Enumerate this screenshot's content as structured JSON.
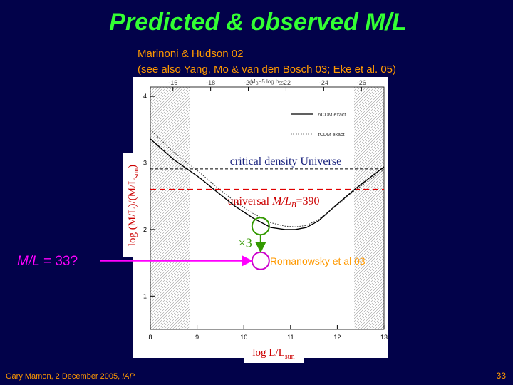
{
  "title": "Predicted & observed M/L",
  "citation": "Marinoni & Hudson 02",
  "citation_note": "(see also Yang, Mo & van den Bosch 03; Eke et al. 05)",
  "footer": {
    "author": "Gary Mamon, 2 December 2005, ",
    "venue": "IAP",
    "page": "33"
  },
  "chart_data": {
    "type": "line",
    "xlabel": {
      "main": "log L/L",
      "sub": "sun"
    },
    "ylabel": {
      "main": "log (M/L)/(M/L",
      "sub": "sun",
      "end": ")"
    },
    "x2label": {
      "main": "M",
      "sub": "B",
      "rest": "−5 log h",
      "sub2": "55"
    },
    "xlim": [
      8,
      13
    ],
    "xticks": [
      8,
      9,
      10,
      11,
      12,
      13
    ],
    "ylim": [
      0.5,
      4.14
    ],
    "yticks": [
      1,
      2,
      3,
      4
    ],
    "x2lim": [
      -14.8,
      -27.2
    ],
    "x2ticks": [
      -16,
      -18,
      -20,
      -22,
      -24,
      -26
    ],
    "series": [
      {
        "name": "ΛCDM exact",
        "color": "#000000",
        "style": "solid",
        "x": [
          8,
          8.5,
          9.05,
          9.4,
          9.81,
          10.2,
          10.58,
          10.88,
          11.1,
          11.34,
          11.6,
          11.95,
          12.4,
          13
        ],
        "values": [
          3.36,
          3.05,
          2.78,
          2.58,
          2.35,
          2.17,
          2.03,
          2.0,
          2.0,
          2.03,
          2.13,
          2.35,
          2.62,
          2.94
        ]
      },
      {
        "name": "τCDM exact",
        "color": "#333333",
        "style": "dotted",
        "x": [
          8,
          8.5,
          9.05,
          9.4,
          9.81,
          10.2,
          10.58,
          10.88,
          11.1,
          11.34,
          11.6,
          11.95,
          12.4,
          13
        ],
        "values": [
          3.5,
          3.16,
          2.86,
          2.65,
          2.42,
          2.24,
          2.1,
          2.05,
          2.04,
          2.06,
          2.15,
          2.34,
          2.6,
          2.9
        ]
      }
    ],
    "hlines": [
      {
        "label": "critical density Universe",
        "value": 2.91,
        "color": "#000000",
        "label_color": "#1a237e"
      },
      {
        "label": {
          "main": "universal ",
          "ml": "M/L",
          "sub": "B",
          "rest": "=390"
        },
        "value": 2.6,
        "color": "#e00000",
        "label_color": "#cc0000"
      }
    ],
    "points": [
      {
        "x": 10.36,
        "value": 2.05,
        "color": "#339900"
      },
      {
        "name": "Romanowsky et al 03",
        "x": 10.36,
        "value": 1.53,
        "color": "#cc00cc"
      }
    ],
    "factor_label": "×3",
    "observed_label": {
      "ml": "M/L",
      "rest": " = 33?"
    }
  }
}
